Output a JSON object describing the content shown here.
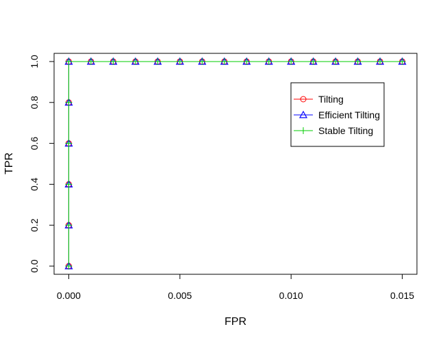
{
  "chart_data": {
    "type": "line",
    "xlabel": "FPR",
    "ylabel": "TPR",
    "xlim": [
      -0.00066,
      0.01566
    ],
    "ylim": [
      -0.04,
      1.04
    ],
    "x_ticks": [
      0.0,
      0.005,
      0.01,
      0.015
    ],
    "x_tick_labels": [
      "0.000",
      "0.005",
      "0.010",
      "0.015"
    ],
    "y_ticks": [
      0.0,
      0.2,
      0.4,
      0.6,
      0.8,
      1.0
    ],
    "y_tick_labels": [
      "0.0",
      "0.2",
      "0.4",
      "0.6",
      "0.8",
      "1.0"
    ],
    "grid": false,
    "legend_position": "top-right",
    "x": [
      0,
      0,
      0,
      0,
      0,
      0,
      0.001,
      0.002,
      0.003,
      0.004,
      0.005,
      0.006,
      0.007,
      0.008,
      0.009,
      0.01,
      0.011,
      0.012,
      0.013,
      0.014,
      0.015
    ],
    "series": [
      {
        "name": "Tilting",
        "color": "#ff0000",
        "marker": "circle",
        "values": [
          0,
          0.2,
          0.4,
          0.6,
          0.8,
          1,
          1,
          1,
          1,
          1,
          1,
          1,
          1,
          1,
          1,
          1,
          1,
          1,
          1,
          1,
          1
        ]
      },
      {
        "name": "Efficient Tilting",
        "color": "#0000ff",
        "marker": "triangle",
        "values": [
          0,
          0.2,
          0.4,
          0.6,
          0.8,
          1,
          1,
          1,
          1,
          1,
          1,
          1,
          1,
          1,
          1,
          1,
          1,
          1,
          1,
          1,
          1
        ]
      },
      {
        "name": "Stable Tilting",
        "color": "#00cd00",
        "marker": "plus",
        "values": [
          0,
          0.2,
          0.4,
          0.6,
          0.8,
          1,
          1,
          1,
          1,
          1,
          1,
          1,
          1,
          1,
          1,
          1,
          1,
          1,
          1,
          1,
          1
        ]
      }
    ]
  }
}
